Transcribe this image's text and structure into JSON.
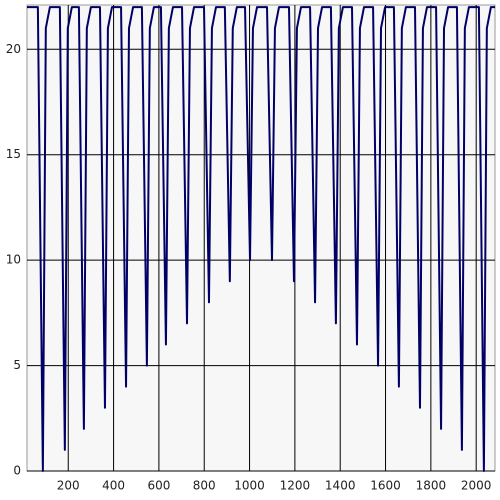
{
  "chart_data": {
    "type": "line",
    "x": [
      18,
      66,
      88,
      101,
      119,
      163,
      185,
      198,
      216,
      247,
      269,
      282,
      300,
      340,
      362,
      375,
      393,
      433,
      455,
      468,
      486,
      525,
      547,
      560,
      578,
      609,
      631,
      644,
      662,
      702,
      724,
      737,
      755,
      799,
      821,
      834,
      852,
      891,
      913,
      926,
      944,
      980,
      1002,
      1015,
      1033,
      1077,
      1099,
      1112,
      1130,
      1174,
      1196,
      1209,
      1227,
      1267,
      1289,
      1302,
      1320,
      1359,
      1381,
      1394,
      1412,
      1452,
      1474,
      1487,
      1505,
      1545,
      1567,
      1580,
      1598,
      1637,
      1659,
      1672,
      1690,
      1730,
      1752,
      1765,
      1783,
      1823,
      1845,
      1858,
      1876,
      1915,
      1937,
      1950,
      1968,
      2012,
      2034,
      2047,
      2065,
      2083
    ],
    "series": [
      {
        "color": "#000066",
        "values": [
          22,
          22,
          0,
          21,
          22,
          22,
          1,
          21,
          22,
          22,
          2,
          21,
          22,
          22,
          3,
          21,
          22,
          22,
          4,
          21,
          22,
          22,
          5,
          21,
          22,
          22,
          6,
          21,
          22,
          22,
          7,
          21,
          22,
          22,
          8,
          21,
          22,
          22,
          9,
          21,
          22,
          22,
          10,
          21,
          22,
          22,
          10,
          21,
          22,
          22,
          9,
          21,
          22,
          22,
          8,
          21,
          22,
          22,
          7,
          21,
          22,
          22,
          6,
          21,
          22,
          22,
          5,
          21,
          22,
          22,
          4,
          21,
          22,
          22,
          3,
          21,
          22,
          22,
          2,
          21,
          22,
          22,
          1,
          21,
          22,
          22,
          0,
          21,
          22,
          22
        ]
      }
    ],
    "xlim": [
      18,
      2083
    ],
    "ylim": [
      0,
      22.1
    ],
    "xticks": [
      200,
      400,
      600,
      800,
      1000,
      1200,
      1400,
      1600,
      1800,
      2000
    ],
    "yticks": [
      0,
      5,
      10,
      15,
      20
    ],
    "grid": true
  }
}
